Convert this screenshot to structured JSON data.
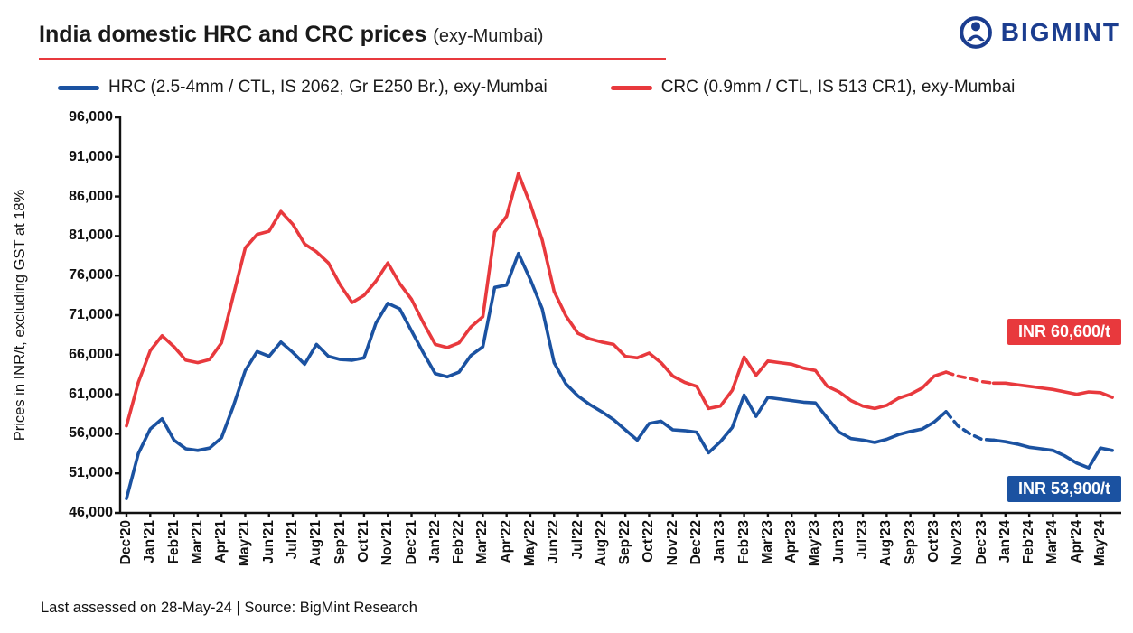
{
  "header": {
    "title": "India domestic HRC and CRC prices",
    "subtitle": "(exy-Mumbai)",
    "logo_text": "BIGMINT"
  },
  "legend": [
    {
      "label": "HRC (2.5-4mm / CTL, IS 2062, Gr E250 Br.), exy-Mumbai",
      "color": "#1b52a1"
    },
    {
      "label": "CRC (0.9mm / CTL, IS 513 CR1), exy-Mumbai",
      "color": "#e8393d"
    }
  ],
  "annotations": [
    {
      "series": "CRC",
      "label": "INR 60,600/t",
      "color": "#e8393d"
    },
    {
      "series": "HRC",
      "label": "INR 53,900/t",
      "color": "#1b52a1"
    }
  ],
  "footer": {
    "text": "Last assessed on 28-May-24  |  Source: BigMint Research"
  },
  "chart_data": {
    "type": "line",
    "title": "India domestic HRC and CRC prices (exy-Mumbai)",
    "xlabel": "",
    "ylabel": "Prices in INR/t, excluding GST at 18%",
    "ylim": [
      46000,
      96000
    ],
    "yticks": [
      46000,
      51000,
      56000,
      61000,
      66000,
      71000,
      76000,
      81000,
      86000,
      91000,
      96000
    ],
    "grid": false,
    "legend_position": "top",
    "points_per_month": 2,
    "categories": [
      "Dec'20",
      "Jan'21",
      "Feb'21",
      "Mar'21",
      "Apr'21",
      "May'21",
      "Jun'21",
      "Jul'21",
      "Aug'21",
      "Sep'21",
      "Oct'21",
      "Nov'21",
      "Dec'21",
      "Jan'22",
      "Feb'22",
      "Mar'22",
      "Apr'22",
      "May'22",
      "Jun'22",
      "Jul'22",
      "Aug'22",
      "Sep'22",
      "Oct'22",
      "Nov'22",
      "Dec'22",
      "Jan'23",
      "Feb'23",
      "Mar'23",
      "Apr'23",
      "May'23",
      "Jun'23",
      "Jul'23",
      "Aug'23",
      "Sep'23",
      "Oct'23",
      "Nov'23",
      "Dec'23",
      "Jan'24",
      "Feb'24",
      "Mar'24",
      "Apr'24",
      "May'24"
    ],
    "dashed_segment": {
      "from_index": 69,
      "to_index": 73
    },
    "last_values": {
      "HRC": 53900,
      "CRC": 60600
    },
    "series": [
      {
        "name": "HRC (2.5-4mm / CTL, IS 2062, Gr E250 Br.), exy-Mumbai",
        "color": "#1b52a1",
        "values": [
          47800,
          53500,
          56600,
          57900,
          55200,
          54100,
          53900,
          54200,
          55500,
          59500,
          64000,
          66400,
          65800,
          67600,
          66300,
          64800,
          67300,
          65800,
          65400,
          65300,
          65600,
          70000,
          72500,
          71800,
          69000,
          66200,
          63600,
          63200,
          63800,
          65900,
          67000,
          74500,
          74800,
          78800,
          75500,
          71800,
          65000,
          62300,
          60800,
          59700,
          58800,
          57800,
          56500,
          55200,
          57300,
          57600,
          56500,
          56400,
          56200,
          53600,
          55000,
          56800,
          60900,
          58200,
          60600,
          60400,
          60200,
          60000,
          59900,
          58000,
          56200,
          55400,
          55200,
          54900,
          55300,
          55900,
          56300,
          56600,
          57500,
          58800,
          57000,
          56000,
          55300,
          55200,
          55000,
          54700,
          54300,
          54100,
          53900,
          53200,
          52300,
          51700,
          54200,
          53900
        ]
      },
      {
        "name": "CRC (0.9mm / CTL, IS 513 CR1), exy-Mumbai",
        "color": "#e8393d",
        "values": [
          57000,
          62500,
          66500,
          68400,
          67000,
          65300,
          65000,
          65400,
          67500,
          73500,
          79500,
          81200,
          81600,
          84100,
          82500,
          80000,
          79000,
          77600,
          74800,
          72600,
          73500,
          75300,
          77600,
          75000,
          73000,
          70000,
          67300,
          66900,
          67500,
          69500,
          70800,
          81500,
          83500,
          88900,
          85000,
          80500,
          74000,
          70900,
          68700,
          68000,
          67600,
          67300,
          65800,
          65600,
          66200,
          65000,
          63300,
          62500,
          62000,
          59200,
          59500,
          61500,
          65700,
          63400,
          65200,
          65000,
          64800,
          64300,
          64000,
          62000,
          61300,
          60200,
          59500,
          59200,
          59600,
          60500,
          61000,
          61800,
          63300,
          63800,
          63300,
          63000,
          62600,
          62400,
          62400,
          62200,
          62000,
          61800,
          61600,
          61300,
          61000,
          61300,
          61200,
          60600
        ]
      }
    ]
  }
}
